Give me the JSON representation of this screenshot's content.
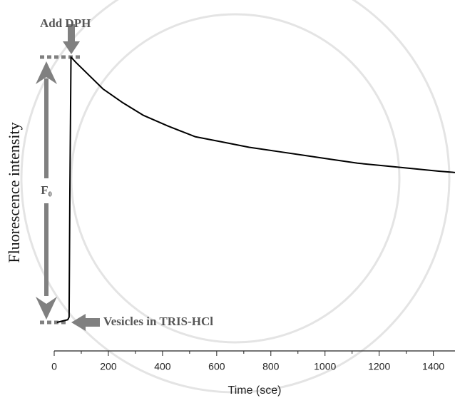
{
  "chart_data": {
    "type": "line",
    "title": null,
    "x_label": "Time (sce)",
    "y_label": "Fluorescence intensity",
    "annotations": {
      "add": "Add DPH",
      "f0": "F₀",
      "vesicles": "Vesicles in TRIS-HCl"
    },
    "xlim": [
      0,
      1480
    ],
    "xticks": [
      0,
      200,
      400,
      600,
      800,
      1000,
      1200,
      1400
    ],
    "ylim": [
      0,
      1
    ],
    "series": [
      {
        "name": null,
        "color": "#000000",
        "x": [
          10,
          30,
          50,
          55,
          58,
          62,
          80,
          120,
          180,
          250,
          330,
          420,
          520,
          620,
          720,
          820,
          920,
          1020,
          1120,
          1220,
          1320,
          1420,
          1480
        ],
        "values": [
          0,
          0.005,
          0.01,
          0.02,
          0.5,
          1.0,
          0.98,
          0.94,
          0.88,
          0.83,
          0.78,
          0.74,
          0.7,
          0.68,
          0.66,
          0.645,
          0.63,
          0.615,
          0.6,
          0.59,
          0.58,
          0.57,
          0.565
        ]
      }
    ]
  }
}
